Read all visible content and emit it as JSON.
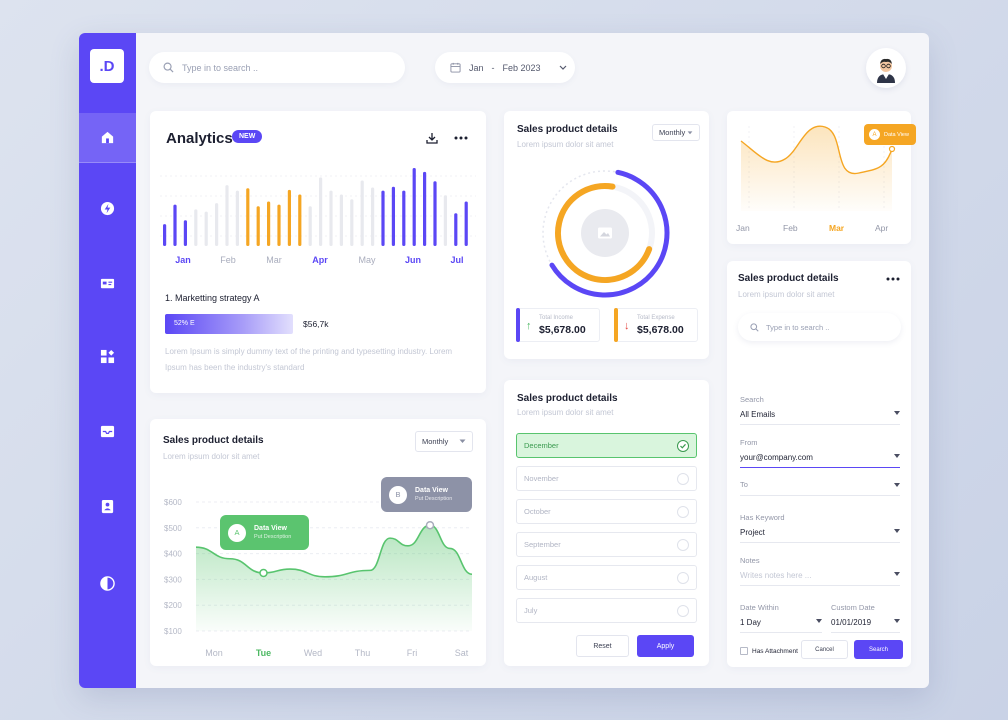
{
  "brand": {
    "logo": ".D",
    "accent": "#5b47f5",
    "green": "#58c46e",
    "orange": "#f5a623"
  },
  "nav": [
    {
      "icon": "home-icon",
      "active": true
    },
    {
      "icon": "lightning-icon",
      "active": false
    },
    {
      "icon": "id-card-icon",
      "active": false
    },
    {
      "icon": "apps-icon",
      "active": false
    },
    {
      "icon": "inbox-icon",
      "active": false
    },
    {
      "icon": "contact-icon",
      "active": false
    },
    {
      "icon": "contrast-icon",
      "active": false
    }
  ],
  "header": {
    "search_placeholder": "Type in to search ..",
    "date_from": "Jan",
    "date_sep": "-",
    "date_to": "Feb 2023"
  },
  "analytics": {
    "title": "Analytics",
    "badge": "NEW",
    "months": [
      "Jan",
      "Feb",
      "Mar",
      "Apr",
      "May",
      "Jun",
      "Jul"
    ],
    "active_months": [
      "Jan",
      "Apr",
      "Jun",
      "Jul"
    ],
    "strategy_title": "1. Marketting strategy A",
    "progress_label": "52% E",
    "progress_value": 52,
    "progress_amount": "$56,7k",
    "description": "Lorem Ipsum is simply dummy text of the printing and typesetting industry. Lorem Ipsum has been the industry's standard"
  },
  "analytics_bars": {
    "type": "bar",
    "values": [
      0.28,
      0.53,
      0.33,
      0.47,
      0.44,
      0.55,
      0.78,
      0.71,
      0.74,
      0.51,
      0.57,
      0.53,
      0.72,
      0.66,
      0.51,
      0.88,
      0.71,
      0.66,
      0.6,
      0.84,
      0.75,
      0.71,
      0.76,
      0.71,
      1.0,
      0.95,
      0.83,
      0.65,
      0.42,
      0.57
    ],
    "colors": [
      "p",
      "p",
      "p",
      "g",
      "g",
      "g",
      "g",
      "g",
      "o",
      "o",
      "o",
      "o",
      "o",
      "o",
      "g",
      "g",
      "g",
      "g",
      "g",
      "g",
      "g",
      "p",
      "p",
      "p",
      "p",
      "p",
      "p",
      "g",
      "p",
      "p"
    ]
  },
  "sales_chart": {
    "title": "Sales product details",
    "subtitle": "Lorem ipsum dolor sit amet",
    "filter": "Monthly",
    "y_ticks": [
      "$600",
      "$500",
      "$400",
      "$300",
      "$200",
      "$100"
    ],
    "x_ticks": [
      "Mon",
      "Tue",
      "Wed",
      "Thu",
      "Fri",
      "Sat"
    ],
    "active_x": "Tue",
    "tooltip_a": {
      "letter": "A",
      "title": "Data View",
      "desc": "Put Description"
    },
    "tooltip_b": {
      "letter": "B",
      "title": "Data View",
      "desc": "Put Description"
    }
  },
  "chart_data": {
    "type": "area",
    "x": [
      "Mon",
      "Tue",
      "Wed",
      "Thu",
      "Fri",
      "Sat"
    ],
    "values": [
      390,
      320,
      320,
      340,
      500,
      320
    ],
    "ylim": [
      100,
      600
    ],
    "grid": true
  },
  "donut_card": {
    "title": "Sales product details",
    "subtitle": "Lorem ipsum dolor sit amet",
    "filter": "Monthly",
    "outer_fraction": 0.63,
    "inner_fraction": 0.72,
    "income_label": "Total Income",
    "income_value": "$5,678.00",
    "expense_label": "Total Expense",
    "expense_value": "$5,678.00"
  },
  "month_filter": {
    "title": "Sales product details",
    "subtitle": "Lorem ipsum dolor sit amet",
    "options": [
      "December",
      "November",
      "October",
      "September",
      "August",
      "July"
    ],
    "selected": "December",
    "reset": "Reset",
    "apply": "Apply"
  },
  "mini_chart": {
    "months": [
      "Jan",
      "Feb",
      "Mar",
      "Apr"
    ],
    "active": "Mar",
    "tooltip_letter": "A",
    "tooltip_text": "Data View"
  },
  "search_form": {
    "title": "Sales product details",
    "subtitle": "Lorem ipsum dolor sit amet",
    "search_placeholder": "Type in to search ..",
    "search_label": "Search",
    "search_value": "All Emails",
    "from_label": "From",
    "from_value": "your@company.com",
    "to_label": "To",
    "to_value": "",
    "keyword_label": "Has Keyword",
    "keyword_value": "Project",
    "notes_label": "Notes",
    "notes_placeholder": "Writes notes here ...",
    "date_within_label": "Date Within",
    "date_within_value": "1 Day",
    "custom_date_label": "Custom Date",
    "custom_date_value": "01/01/2019",
    "attachment_label": "Has Attachment",
    "cancel": "Cancel",
    "search": "Search"
  }
}
